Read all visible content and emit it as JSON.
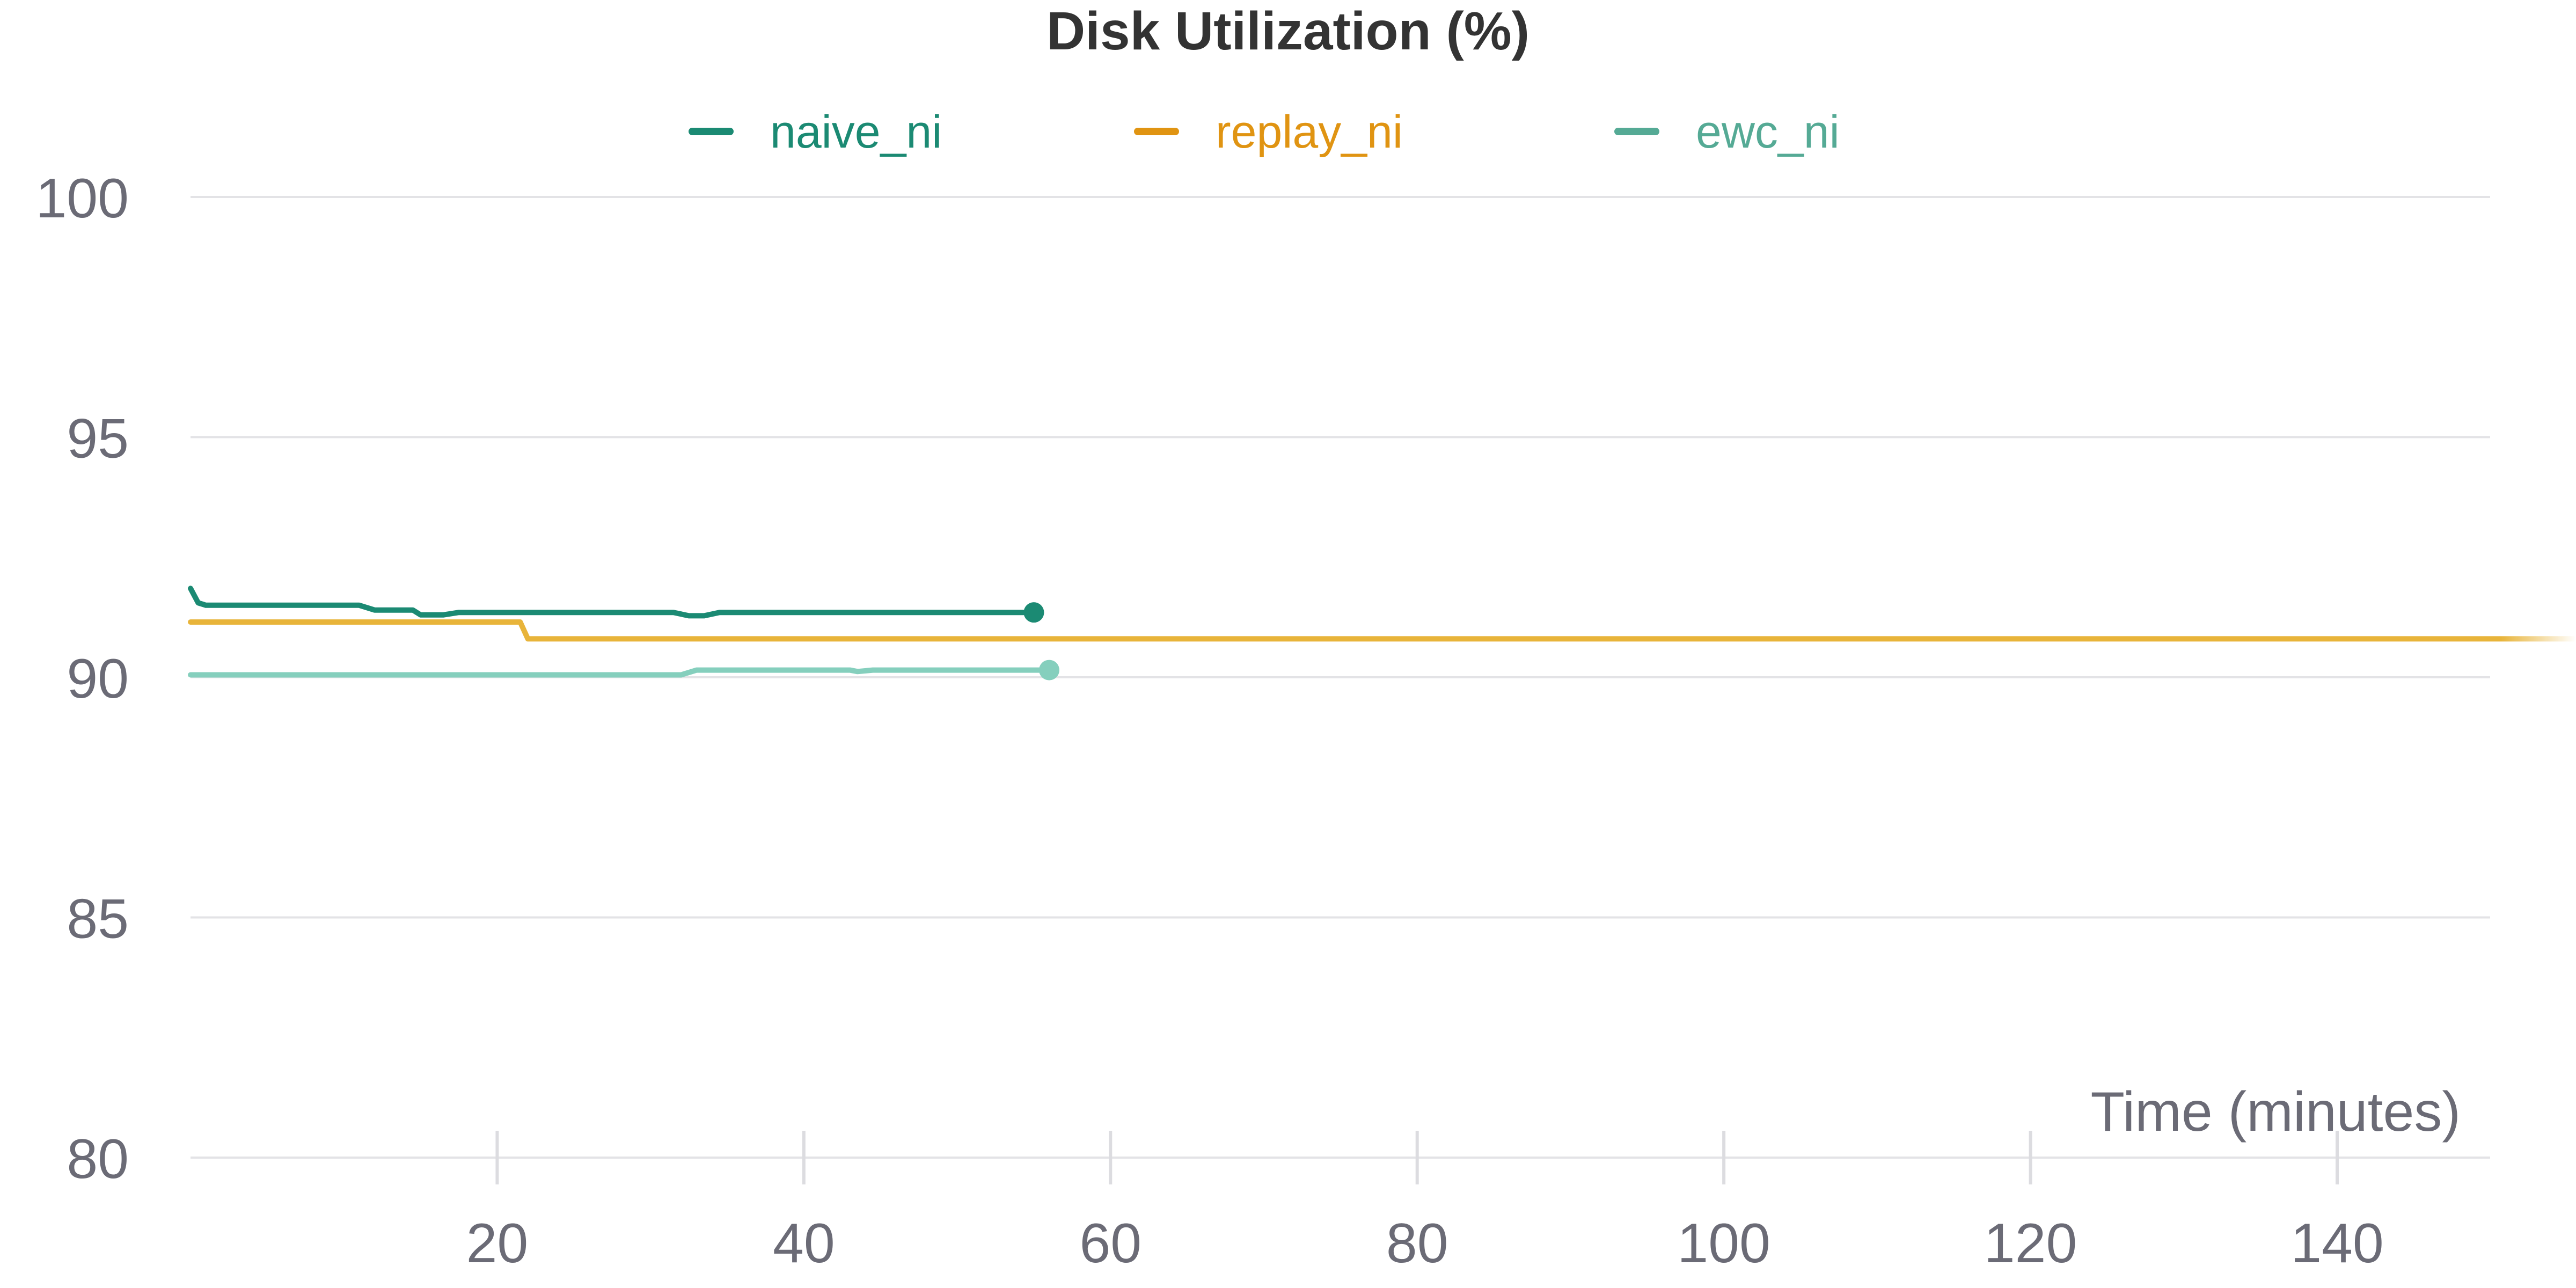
{
  "chart_data": {
    "type": "line",
    "title": "Disk Utilization (%)",
    "xlabel": "Time (minutes)",
    "ylabel": "",
    "xlim": [
      0,
      150
    ],
    "ylim": [
      80,
      100
    ],
    "x_ticks": [
      20,
      40,
      60,
      80,
      100,
      120,
      140
    ],
    "y_ticks": [
      80,
      85,
      90,
      95,
      100
    ],
    "grid": "horizontal",
    "legend_position": "top-center",
    "series": [
      {
        "name": "naive_ni",
        "color": "#1b8a73",
        "end_marker": true,
        "points": [
          [
            0,
            91.85
          ],
          [
            0.5,
            91.55
          ],
          [
            1,
            91.5
          ],
          [
            11,
            91.5
          ],
          [
            12,
            91.4
          ],
          [
            14.5,
            91.4
          ],
          [
            15,
            91.3
          ],
          [
            16.5,
            91.3
          ],
          [
            17.5,
            91.35
          ],
          [
            31.5,
            91.35
          ],
          [
            32.5,
            91.28
          ],
          [
            33.5,
            91.28
          ],
          [
            34.5,
            91.35
          ],
          [
            55,
            91.35
          ]
        ]
      },
      {
        "name": "replay_ni",
        "color": "#e8b43a",
        "legend_color": "#e09412",
        "end_marker": false,
        "points": [
          [
            0,
            91.15
          ],
          [
            21.5,
            91.15
          ],
          [
            22,
            90.8
          ],
          [
            150,
            90.8
          ]
        ]
      },
      {
        "name": "ewc_ni",
        "color": "#85cfbd",
        "legend_color": "#55aa95",
        "end_marker": true,
        "points": [
          [
            0,
            90.05
          ],
          [
            32,
            90.05
          ],
          [
            33,
            90.15
          ],
          [
            43,
            90.15
          ],
          [
            43.5,
            90.12
          ],
          [
            44.5,
            90.15
          ],
          [
            56,
            90.15
          ]
        ]
      }
    ]
  }
}
